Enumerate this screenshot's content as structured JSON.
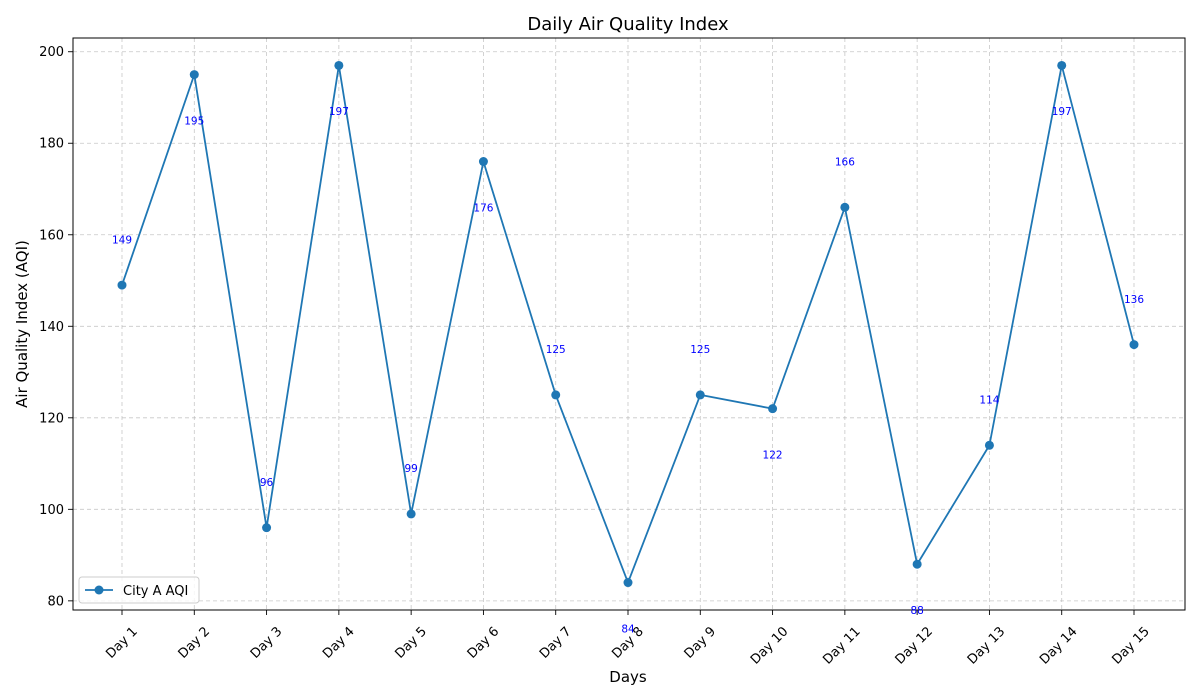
{
  "chart_data": {
    "type": "line",
    "title": "Daily Air Quality Index",
    "xlabel": "Days",
    "ylabel": "Air Quality Index (AQI)",
    "categories": [
      "Day 1",
      "Day 2",
      "Day 3",
      "Day 4",
      "Day 5",
      "Day 6",
      "Day 7",
      "Day 8",
      "Day 9",
      "Day 10",
      "Day 11",
      "Day 12",
      "Day 13",
      "Day 14",
      "Day 15"
    ],
    "series": [
      {
        "name": "City A AQI",
        "color": "#1f77b4",
        "marker": "circle",
        "values": [
          149,
          195,
          96,
          197,
          99,
          176,
          125,
          84,
          125,
          122,
          166,
          88,
          114,
          197,
          136
        ]
      }
    ],
    "data_labels": [
      "149",
      "195",
      "96",
      "197",
      "99",
      "176",
      "125",
      "84",
      "125",
      "122",
      "166",
      "88",
      "114",
      "197",
      "136"
    ],
    "data_label_color": "#0000ff",
    "ylim": [
      78,
      203
    ],
    "yticks": [
      80,
      100,
      120,
      140,
      160,
      180,
      200
    ],
    "grid": true,
    "grid_style": "dashed",
    "legend_position": "lower-left"
  }
}
